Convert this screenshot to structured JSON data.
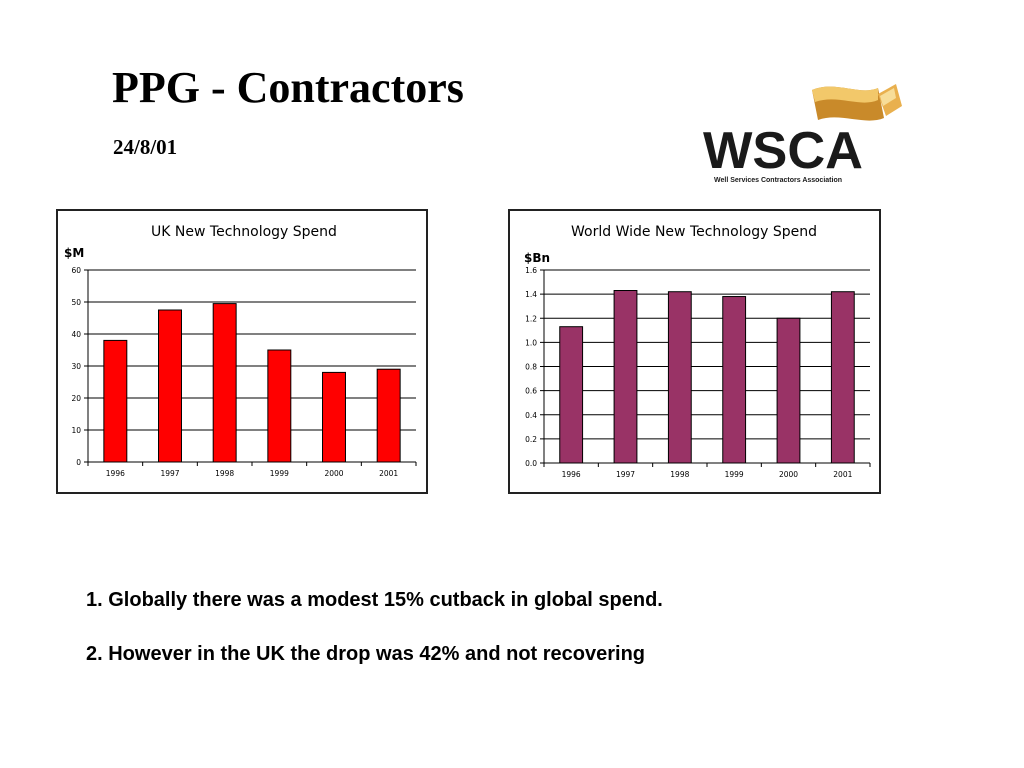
{
  "slide": {
    "title": "PPG - Contractors",
    "date": "24/8/01"
  },
  "logo": {
    "text": "WSCA",
    "subtitle": "Well Services Contractors Association",
    "icon": "flag-icon",
    "colors": {
      "text": "#1a1a1a",
      "flag_light": "#f2c86a",
      "flag_dark": "#c98a2a"
    }
  },
  "notes": [
    "1. Globally there was a modest 15% cutback in global spend.",
    "2. However in the UK the drop was 42% and not recovering"
  ],
  "chart_data": [
    {
      "type": "bar",
      "title": "UK New Technology Spend",
      "ylabel": "$M",
      "categories": [
        "1996",
        "1997",
        "1998",
        "1999",
        "2000",
        "2001"
      ],
      "values": [
        38,
        47.5,
        49.5,
        35,
        28,
        29
      ],
      "ylim": [
        0,
        60
      ],
      "yticks": [
        "0",
        "10",
        "20",
        "30",
        "40",
        "50",
        "60"
      ],
      "grid": true,
      "color": "#ff0000"
    },
    {
      "type": "bar",
      "title": "World Wide New Technology Spend",
      "ylabel": "$Bn",
      "categories": [
        "1996",
        "1997",
        "1998",
        "1999",
        "2000",
        "2001"
      ],
      "values": [
        1.13,
        1.43,
        1.42,
        1.38,
        1.2,
        1.42
      ],
      "ylim": [
        0,
        1.6
      ],
      "yticks": [
        "0.0",
        "0.2",
        "0.4",
        "0.6",
        "0.8",
        "1.0",
        "1.2",
        "1.4",
        "1.6"
      ],
      "grid": true,
      "color": "#993366"
    }
  ]
}
